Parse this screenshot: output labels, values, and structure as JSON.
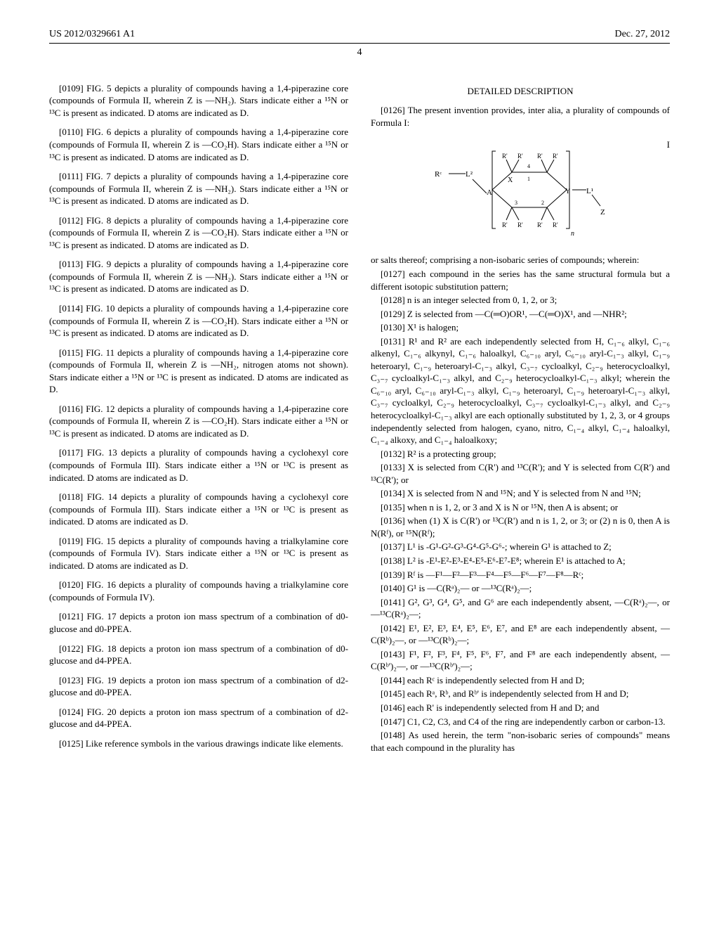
{
  "header": {
    "pub_number": "US 2012/0329661 A1",
    "pub_date": "Dec. 27, 2012"
  },
  "page_number": "4",
  "left_column": {
    "paras": [
      {
        "num": "[0109]",
        "text": " FIG. 5 depicts a plurality of compounds having a 1,4-piperazine core (compounds of Formula II, wherein Z is —NH₂). Stars indicate either a ¹⁵N or ¹³C is present as indicated. D atoms are indicated as D."
      },
      {
        "num": "[0110]",
        "text": " FIG. 6 depicts a plurality of compounds having a 1,4-piperazine core (compounds of Formula II, wherein Z is —CO₂H). Stars indicate either a ¹⁵N or ¹³C is present as indicated. D atoms are indicated as D."
      },
      {
        "num": "[0111]",
        "text": " FIG. 7 depicts a plurality of compounds having a 1,4-piperazine core (compounds of Formula II, wherein Z is —NH₂). Stars indicate either a ¹⁵N or ¹³C is present as indicated. D atoms are indicated as D."
      },
      {
        "num": "[0112]",
        "text": " FIG. 8 depicts a plurality of compounds having a 1,4-piperazine core (compounds of Formula II, wherein Z is —CO₂H). Stars indicate either a ¹⁵N or ¹³C is present as indicated. D atoms are indicated as D."
      },
      {
        "num": "[0113]",
        "text": " FIG. 9 depicts a plurality of compounds having a 1,4-piperazine core (compounds of Formula II, wherein Z is —NH₂). Stars indicate either a ¹⁵N or ¹³C is present as indicated. D atoms are indicated as D."
      },
      {
        "num": "[0114]",
        "text": " FIG. 10 depicts a plurality of compounds having a 1,4-piperazine core (compounds of Formula II, wherein Z is —CO₂H). Stars indicate either a ¹⁵N or ¹³C is present as indicated. D atoms are indicated as D."
      },
      {
        "num": "[0115]",
        "text": " FIG. 11 depicts a plurality of compounds having a 1,4-piperazine core (compounds of Formula II, wherein Z is —NH₂, nitrogen atoms not shown). Stars indicate either a ¹⁵N or ¹³C is present as indicated. D atoms are indicated as D."
      },
      {
        "num": "[0116]",
        "text": " FIG. 12 depicts a plurality of compounds having a 1,4-piperazine core (compounds of Formula II, wherein Z is —CO₂H). Stars indicate either a ¹⁵N or ¹³C is present as indicated. D atoms are indicated as D."
      },
      {
        "num": "[0117]",
        "text": " FIG. 13 depicts a plurality of compounds having a cyclohexyl core (compounds of Formula III). Stars indicate either a ¹⁵N or ¹³C is present as indicated. D atoms are indicated as D."
      },
      {
        "num": "[0118]",
        "text": " FIG. 14 depicts a plurality of compounds having a cyclohexyl core (compounds of Formula III). Stars indicate either a ¹⁵N or ¹³C is present as indicated. D atoms are indicated as D."
      },
      {
        "num": "[0119]",
        "text": " FIG. 15 depicts a plurality of compounds having a trialkylamine core (compounds of Formula IV). Stars indicate either a ¹⁵N or ¹³C is present as indicated. D atoms are indicated as D."
      },
      {
        "num": "[0120]",
        "text": " FIG. 16 depicts a plurality of compounds having a trialkylamine core (compounds of Formula IV)."
      },
      {
        "num": "[0121]",
        "text": " FIG. 17 depicts a proton ion mass spectrum of a combination of d0-glucose and d0-PPEA."
      },
      {
        "num": "[0122]",
        "text": " FIG. 18 depicts a proton ion mass spectrum of a combination of d0-glucose and d4-PPEA."
      },
      {
        "num": "[0123]",
        "text": " FIG. 19 depicts a proton ion mass spectrum of a combination of d2-glucose and d0-PPEA."
      },
      {
        "num": "[0124]",
        "text": " FIG. 20 depicts a proton ion mass spectrum of a combination of d2-glucose and d4-PPEA."
      },
      {
        "num": "[0125]",
        "text": " Like reference symbols in the various drawings indicate like elements."
      }
    ]
  },
  "right_column": {
    "section_title": "DETAILED DESCRIPTION",
    "intro_num": "[0126]",
    "intro_text": " The present invention provides, inter alia, a plurality of compounds of Formula I:",
    "formula_label": "I",
    "post_formula": "or salts thereof; comprising a non-isobaric series of compounds; wherein:",
    "paras": [
      {
        "num": "[0127]",
        "text": " each compound in the series has the same structural formula but a different isotopic substitution pattern;"
      },
      {
        "num": "[0128]",
        "text": " n is an integer selected from 0, 1, 2, or 3;"
      },
      {
        "num": "[0129]",
        "text": " Z is selected from —C(═O)OR¹, —C(═O)X¹, and —NHR²;"
      },
      {
        "num": "[0130]",
        "text": " X¹ is halogen;"
      },
      {
        "num": "[0131]",
        "text": " R¹ and R² are each independently selected from H, C₁₋₆ alkyl, C₁₋₆ alkenyl, C₁₋₆ alkynyl, C₁₋₆ haloalkyl, C₆₋₁₀ aryl, C₆₋₁₀ aryl-C₁₋₃ alkyl, C₁₋₉ heteroaryl, C₁₋₉ heteroaryl-C₁₋₃ alkyl, C₃₋₇ cycloalkyl, C₂₋₉ heterocycloalkyl, C₃₋₇ cycloalkyl-C₁₋₃ alkyl, and C₂₋₉ heterocycloalkyl-C₁₋₃ alkyl; wherein the C₆₋₁₀ aryl, C₆₋₁₀ aryl-C₁₋₃ alkyl, C₁₋₉ heteroaryl, C₁₋₉ heteroaryl-C₁₋₃ alkyl, C₃₋₇ cycloalkyl, C₂₋₉ heterocycloalkyl, C₃₋₇ cycloalkyl-C₁₋₃ alkyl, and C₂₋₉ heterocycloalkyl-C₁₋₃ alkyl are each optionally substituted by 1, 2, 3, or 4 groups independently selected from halogen, cyano, nitro, C₁₋₄ alkyl, C₁₋₄ haloalkyl, C₁₋₄ alkoxy, and C₁₋₄ haloalkoxy;"
      },
      {
        "num": "[0132]",
        "text": " R² is a protecting group;"
      },
      {
        "num": "[0133]",
        "text": " X is selected from C(R') and ¹³C(R'); and Y is selected from C(R') and ¹³C(R'); or"
      },
      {
        "num": "[0134]",
        "text": " X is selected from N and ¹⁵N; and Y is selected from N and ¹⁵N;"
      },
      {
        "num": "[0135]",
        "text": " when n is 1, 2, or 3 and X is N or ¹⁵N, then A is absent; or"
      },
      {
        "num": "[0136]",
        "text": " when (1) X is C(R') or ¹³C(R') and n is 1, 2, or 3; or (2) n is 0, then A is N(Rᶠ), or ¹⁵N(Rᶠ);"
      },
      {
        "num": "[0137]",
        "text": " L¹ is -G¹-G²-G³-G⁴-G⁵-G⁶-; wherein G¹ is attached to Z;"
      },
      {
        "num": "[0138]",
        "text": " L² is -E¹-E²-E³-E⁴-E⁵-E⁶-E⁷-E⁸; wherein E¹ is attached to A;"
      },
      {
        "num": "[0139]",
        "text": " Rᶠ is —F¹—F²—F³—F⁴—F⁵—F⁶—F⁷—F⁸—Rᶜ;"
      },
      {
        "num": "[0140]",
        "text": " G¹ is —C(Rᵃ)₂— or —¹³C(Rᵃ)₂—;"
      },
      {
        "num": "[0141]",
        "text": " G², G³, G⁴, G⁵, and G⁶ are each independently absent, —C(Rᵃ)₂—, or —¹³C(Rᵃ)₂—;"
      },
      {
        "num": "[0142]",
        "text": " E¹, E², E³, E⁴, E⁵, E⁶, E⁷, and E⁸ are each independently absent, —C(Rᵇ)₂—, or —¹³C(Rᵇ)₂—;"
      },
      {
        "num": "[0143]",
        "text": " F¹, F², F³, F⁴, F⁵, F⁶, F⁷, and F⁸ are each independently absent, —C(Rᵇ')₂—, or —¹³C(Rᵇ')₂—;"
      },
      {
        "num": "[0144]",
        "text": " each Rᶜ is independently selected from H and D;"
      },
      {
        "num": "[0145]",
        "text": " each Rᵃ, Rᵇ, and Rᵇ' is independently selected from H and D;"
      },
      {
        "num": "[0146]",
        "text": " each R' is independently selected from H and D; and"
      },
      {
        "num": "[0147]",
        "text": " C1, C2, C3, and C4 of the ring are independently carbon or carbon-13."
      },
      {
        "num": "[0148]",
        "text": " As used herein, the term \"non-isobaric series of compounds\" means that each compound in the plurality has"
      }
    ]
  },
  "formula_diagram": {
    "stroke": "#000000",
    "stroke_width": 1,
    "font_size": 10,
    "labels": {
      "Rc": "Rᶜ",
      "L2": "L²",
      "A": "A",
      "X": "X",
      "Y": "Y",
      "L1": "L¹",
      "Z": "Z",
      "R": "R'",
      "n": "n",
      "one": "1",
      "two": "2",
      "three": "3",
      "four": "4"
    }
  }
}
